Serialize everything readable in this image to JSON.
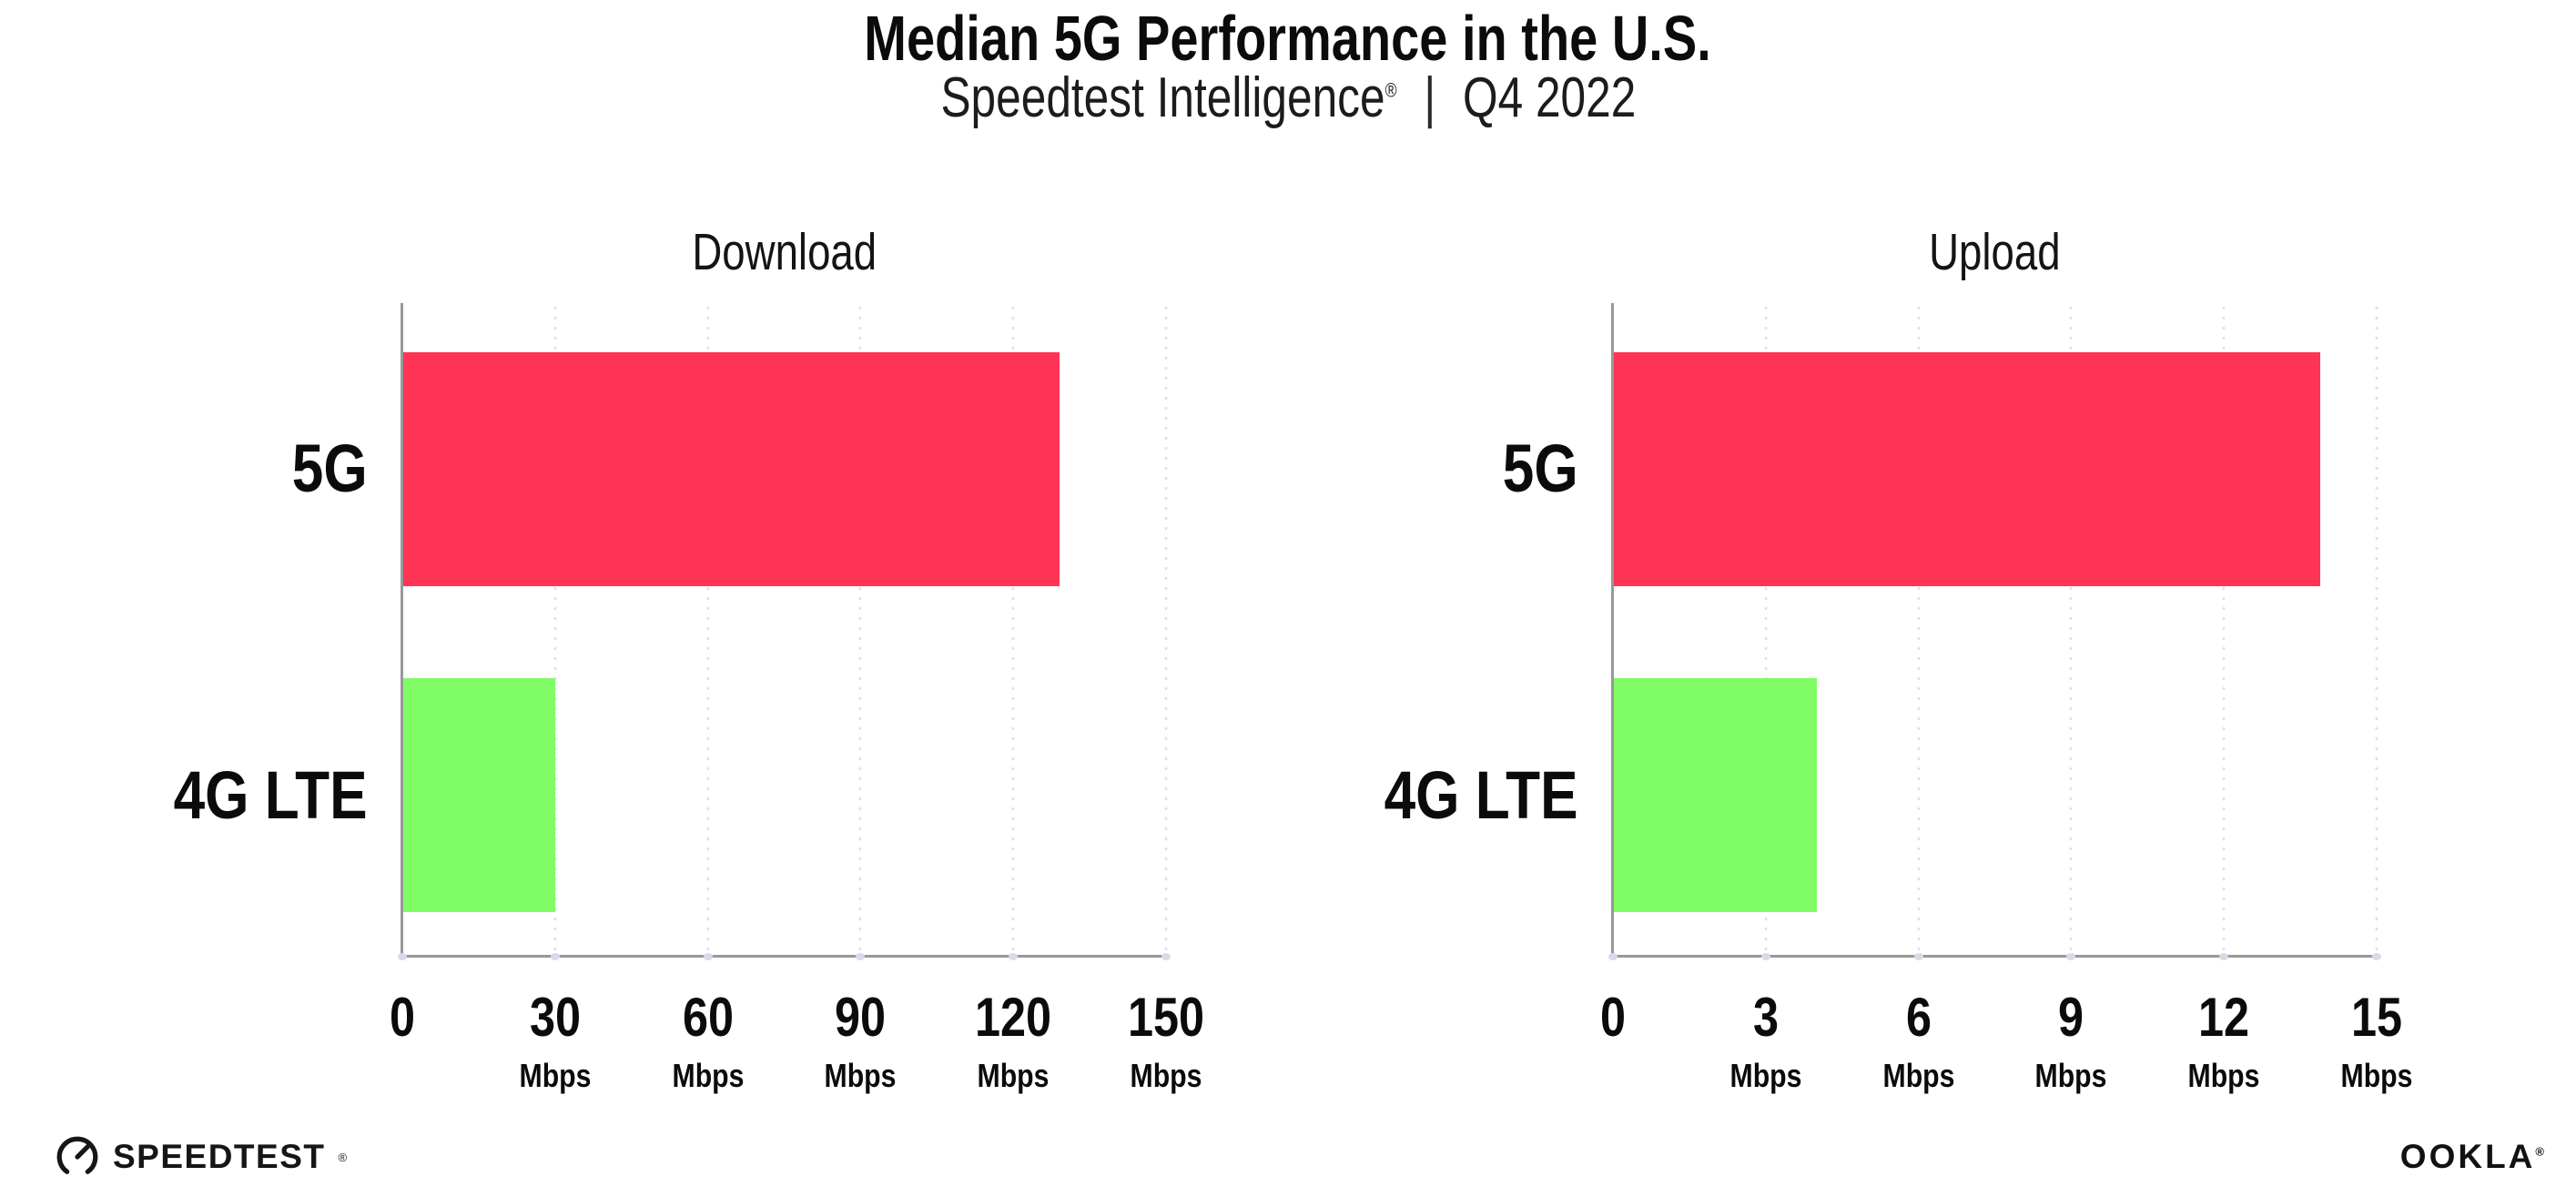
{
  "header": {
    "title": "Median 5G Performance in the U.S.",
    "subtitle_brand": "Speedtest Intelligence",
    "subtitle_reg": "®",
    "subtitle_sep": "|",
    "subtitle_period": "Q4 2022"
  },
  "colors": {
    "bar_5g": "#FF3356",
    "bar_4g_lte": "#80FC64",
    "axis": "#989898",
    "gridline": "#DFE1EC",
    "text": "#0B0B0B"
  },
  "charts": [
    {
      "title": "Download",
      "axis_max": 150,
      "ticks": [
        {
          "label": "0",
          "unit": ""
        },
        {
          "label": "30",
          "unit": "Mbps"
        },
        {
          "label": "60",
          "unit": "Mbps"
        },
        {
          "label": "90",
          "unit": "Mbps"
        },
        {
          "label": "120",
          "unit": "Mbps"
        },
        {
          "label": "150",
          "unit": "Mbps"
        }
      ],
      "bars": [
        {
          "label": "5G",
          "value": 129,
          "color": "#FF3356"
        },
        {
          "label": "4G LTE",
          "value": 30,
          "color": "#80FC64"
        }
      ]
    },
    {
      "title": "Upload",
      "axis_max": 15,
      "ticks": [
        {
          "label": "0",
          "unit": ""
        },
        {
          "label": "3",
          "unit": "Mbps"
        },
        {
          "label": "6",
          "unit": "Mbps"
        },
        {
          "label": "9",
          "unit": "Mbps"
        },
        {
          "label": "12",
          "unit": "Mbps"
        },
        {
          "label": "15",
          "unit": "Mbps"
        }
      ],
      "bars": [
        {
          "label": "5G",
          "value": 13.9,
          "color": "#FF3356"
        },
        {
          "label": "4G LTE",
          "value": 4,
          "color": "#80FC64"
        }
      ]
    }
  ],
  "footer": {
    "speedtest": "SPEEDTEST",
    "speedtest_reg": "®",
    "ookla": "OOKLA",
    "ookla_reg": "®"
  },
  "chart_data": [
    {
      "type": "bar",
      "orientation": "horizontal",
      "title": "Download",
      "categories": [
        "5G",
        "4G LTE"
      ],
      "values": [
        129,
        30
      ],
      "xlabel": "Mbps",
      "xlim": [
        0,
        150
      ],
      "xticks": [
        0,
        30,
        60,
        90,
        120,
        150
      ],
      "bar_colors": [
        "#FF3356",
        "#80FC64"
      ],
      "grid": "dotted-vertical",
      "legend": "none"
    },
    {
      "type": "bar",
      "orientation": "horizontal",
      "title": "Upload",
      "categories": [
        "5G",
        "4G LTE"
      ],
      "values": [
        13.9,
        4
      ],
      "xlabel": "Mbps",
      "xlim": [
        0,
        15
      ],
      "xticks": [
        0,
        3,
        6,
        9,
        12,
        15
      ],
      "bar_colors": [
        "#FF3356",
        "#80FC64"
      ],
      "grid": "dotted-vertical",
      "legend": "none"
    }
  ]
}
